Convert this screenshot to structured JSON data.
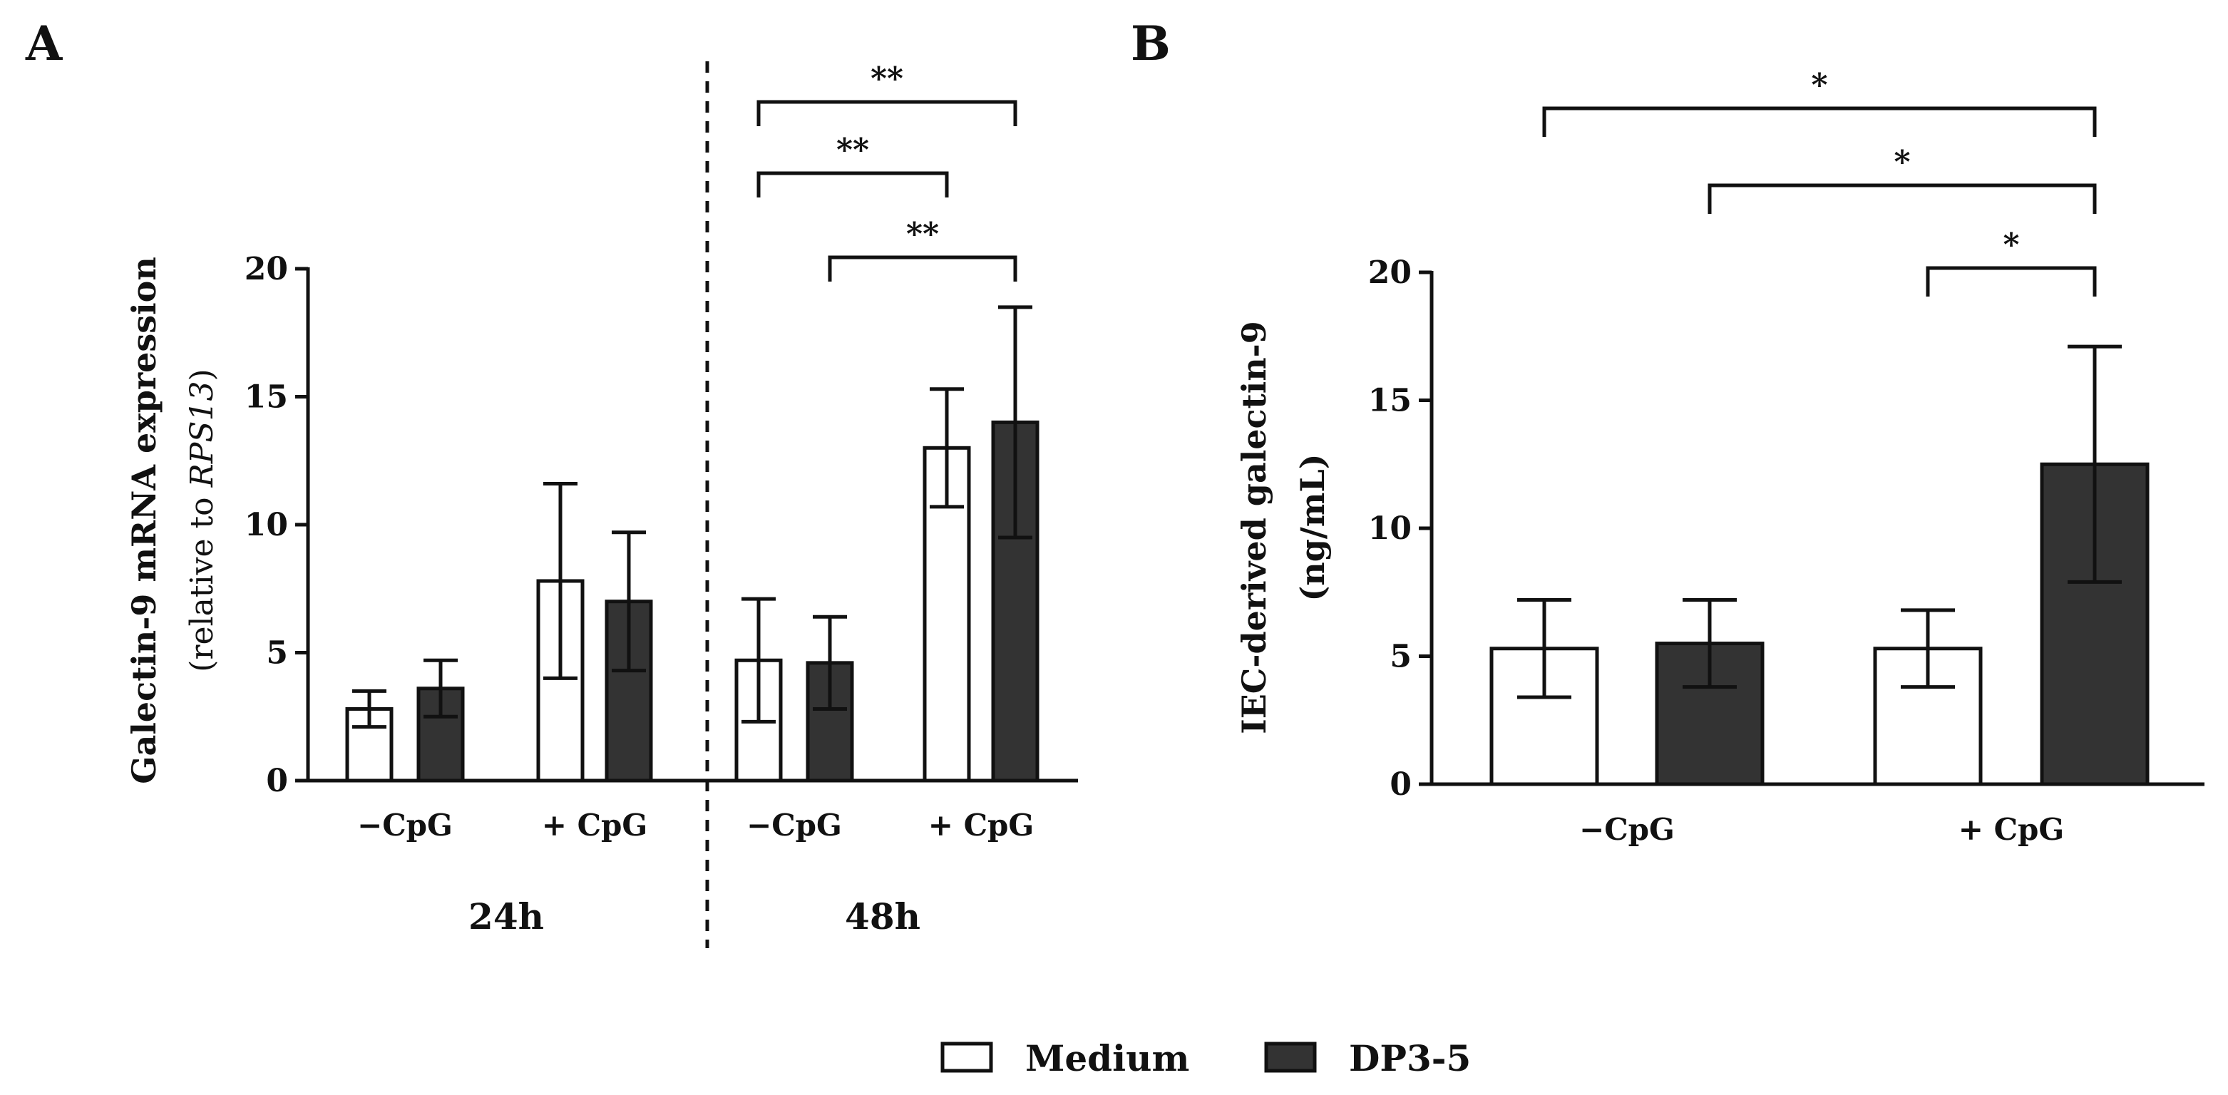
{
  "chart_data": [
    {
      "panel": "A",
      "type": "bar",
      "ylabel": "Galectin-9 mRNA expression",
      "ylabel_sub_prefix": "(relative to ",
      "ylabel_sub_italic": "RPS13",
      "ylabel_sub_suffix": ")",
      "ylim": [
        0,
        20
      ],
      "yticks": [
        "0",
        "5",
        "10",
        "15",
        "20"
      ],
      "groups": [
        {
          "label": "24h",
          "categories": [
            "−CpG",
            "+ CpG"
          ]
        },
        {
          "label": "48h",
          "categories": [
            "−CpG",
            "+ CpG"
          ]
        }
      ],
      "series": [
        {
          "name": "Medium",
          "values": [
            2.8,
            7.8,
            4.7,
            13.0
          ],
          "errors": [
            0.7,
            3.8,
            2.4,
            2.3
          ]
        },
        {
          "name": "DP3-5",
          "values": [
            3.6,
            7.0,
            4.6,
            14.0
          ],
          "errors": [
            1.1,
            2.7,
            1.8,
            4.5
          ]
        }
      ],
      "significance": [
        {
          "label": "**",
          "from": [
            2,
            "Medium"
          ],
          "to": [
            3,
            "DP3-5"
          ]
        },
        {
          "label": "**",
          "from": [
            2,
            "Medium"
          ],
          "to": [
            3,
            "Medium"
          ]
        },
        {
          "label": "**",
          "from": [
            2,
            "DP3-5"
          ],
          "to": [
            3,
            "DP3-5"
          ]
        }
      ]
    },
    {
      "panel": "B",
      "type": "bar",
      "ylabel": "IEC-derived  galectin-9",
      "ylabel_sub": "(ng/mL)",
      "ylim": [
        0,
        20
      ],
      "yticks": [
        "0",
        "5",
        "10",
        "15",
        "20"
      ],
      "categories": [
        "−CpG",
        "+ CpG"
      ],
      "series": [
        {
          "name": "Medium",
          "values": [
            5.3,
            5.3
          ],
          "errors": [
            1.9,
            1.5
          ]
        },
        {
          "name": "DP3-5",
          "values": [
            5.5,
            12.5
          ],
          "errors": [
            1.7,
            4.6
          ]
        }
      ],
      "significance": [
        {
          "label": "*",
          "from": [
            0,
            "Medium"
          ],
          "to": [
            1,
            "DP3-5"
          ]
        },
        {
          "label": "*",
          "from": [
            0,
            "DP3-5"
          ],
          "to": [
            1,
            "DP3-5"
          ]
        },
        {
          "label": "*",
          "from": [
            1,
            "Medium"
          ],
          "to": [
            1,
            "DP3-5"
          ]
        }
      ]
    }
  ],
  "legend": [
    {
      "name": "Medium",
      "color": "#ffffff"
    },
    {
      "name": "DP3-5",
      "color": "#333333"
    }
  ]
}
